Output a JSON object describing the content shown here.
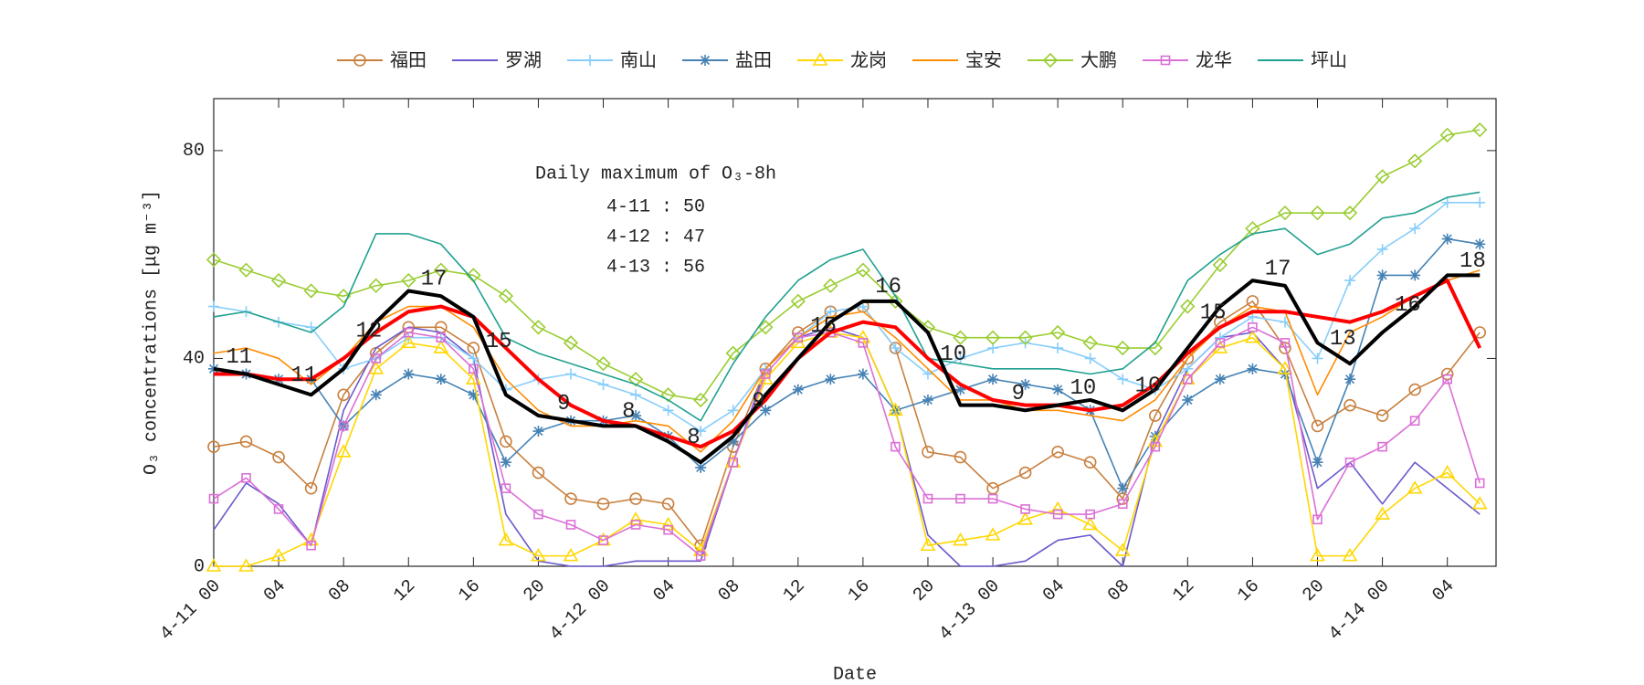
{
  "chart_data": {
    "type": "line",
    "xlabel": "Date",
    "ylabel": "O₃ concentrations [μg m⁻³]",
    "xlim": [
      0,
      79
    ],
    "ylim": [
      0,
      90
    ],
    "yticks": [
      0,
      40,
      80
    ],
    "xticks": [
      {
        "value": 0,
        "label": "4-11 00"
      },
      {
        "value": 4,
        "label": "04"
      },
      {
        "value": 8,
        "label": "08"
      },
      {
        "value": 12,
        "label": "12"
      },
      {
        "value": 16,
        "label": "16"
      },
      {
        "value": 20,
        "label": "20"
      },
      {
        "value": 24,
        "label": "4-12 00"
      },
      {
        "value": 28,
        "label": "04"
      },
      {
        "value": 32,
        "label": "08"
      },
      {
        "value": 36,
        "label": "12"
      },
      {
        "value": 40,
        "label": "16"
      },
      {
        "value": 44,
        "label": "20"
      },
      {
        "value": 48,
        "label": "4-13 00"
      },
      {
        "value": 52,
        "label": "04"
      },
      {
        "value": 56,
        "label": "08"
      },
      {
        "value": 60,
        "label": "12"
      },
      {
        "value": 64,
        "label": "16"
      },
      {
        "value": 68,
        "label": "20"
      },
      {
        "value": 72,
        "label": "4-14 00"
      },
      {
        "value": 76,
        "label": "04"
      }
    ],
    "info": {
      "title": "Daily maximum of O₃-8h",
      "lines": [
        "4-11 : 50",
        "4-12 : 47",
        "4-13 : 56"
      ]
    },
    "x": [
      0,
      2,
      4,
      6,
      8,
      10,
      12,
      14,
      16,
      18,
      20,
      22,
      24,
      26,
      28,
      30,
      32,
      34,
      36,
      38,
      40,
      42,
      44,
      46,
      48,
      50,
      52,
      54,
      56,
      58,
      60,
      62,
      64,
      66,
      68,
      70,
      72,
      74,
      76,
      78
    ],
    "series": [
      {
        "name": "福田",
        "color": "#c8803f",
        "marker": "circle",
        "values": [
          23,
          24,
          21,
          15,
          33,
          41,
          46,
          46,
          42,
          24,
          18,
          13,
          12,
          13,
          12,
          4,
          23,
          38,
          45,
          49,
          50,
          42,
          22,
          21,
          15,
          18,
          22,
          20,
          13,
          29,
          40,
          47,
          51,
          42,
          27,
          31,
          29,
          34,
          37,
          45
        ]
      },
      {
        "name": "罗湖",
        "color": "#6a5acd",
        "marker": "none",
        "values": [
          7,
          16,
          12,
          4,
          30,
          42,
          46,
          45,
          40,
          10,
          1,
          0,
          0,
          1,
          1,
          1,
          20,
          38,
          44,
          46,
          44,
          30,
          6,
          0,
          0,
          1,
          5,
          6,
          0,
          25,
          38,
          44,
          45,
          38,
          15,
          20,
          12,
          20,
          15,
          10
        ]
      },
      {
        "name": "南山",
        "color": "#87cefa",
        "marker": "plus",
        "values": [
          50,
          49,
          47,
          46,
          38,
          40,
          44,
          44,
          40,
          34,
          36,
          37,
          35,
          33,
          30,
          26,
          30,
          38,
          44,
          49,
          50,
          42,
          37,
          40,
          42,
          43,
          42,
          40,
          36,
          34,
          38,
          44,
          48,
          47,
          40,
          55,
          61,
          65,
          70,
          70
        ]
      },
      {
        "name": "盐田",
        "color": "#4682b4",
        "marker": "star",
        "values": [
          38,
          37,
          36,
          36,
          27,
          33,
          37,
          36,
          33,
          20,
          26,
          28,
          28,
          29,
          25,
          19,
          24,
          30,
          34,
          36,
          37,
          30,
          32,
          34,
          36,
          35,
          34,
          30,
          15,
          25,
          32,
          36,
          38,
          37,
          20,
          36,
          56,
          56,
          63,
          62
        ]
      },
      {
        "name": "龙岗",
        "color": "#ffd700",
        "marker": "triangle",
        "values": [
          0,
          0,
          2,
          5,
          22,
          38,
          43,
          42,
          36,
          5,
          2,
          2,
          5,
          9,
          8,
          3,
          20,
          36,
          43,
          45,
          44,
          30,
          4,
          5,
          6,
          9,
          11,
          8,
          3,
          24,
          36,
          42,
          44,
          38,
          2,
          2,
          10,
          15,
          18,
          12
        ]
      },
      {
        "name": "宝安",
        "color": "#ff8c00",
        "marker": "none",
        "values": [
          41,
          42,
          40,
          35,
          40,
          47,
          50,
          50,
          46,
          36,
          30,
          27,
          27,
          28,
          27,
          22,
          28,
          38,
          44,
          48,
          49,
          44,
          38,
          32,
          32,
          30,
          30,
          29,
          28,
          32,
          40,
          46,
          50,
          49,
          33,
          45,
          48,
          52,
          55,
          57
        ]
      },
      {
        "name": "大鹏",
        "color": "#9acd32",
        "marker": "diamond",
        "values": [
          59,
          57,
          55,
          53,
          52,
          54,
          55,
          57,
          56,
          52,
          46,
          43,
          39,
          36,
          33,
          32,
          41,
          46,
          51,
          54,
          57,
          51,
          46,
          44,
          44,
          44,
          45,
          43,
          42,
          42,
          50,
          58,
          65,
          68,
          68,
          68,
          75,
          78,
          83,
          84
        ]
      },
      {
        "name": "龙华",
        "color": "#da70d6",
        "marker": "square",
        "values": [
          13,
          17,
          11,
          4,
          27,
          40,
          45,
          44,
          38,
          15,
          10,
          8,
          5,
          8,
          7,
          2,
          20,
          37,
          44,
          45,
          43,
          23,
          13,
          13,
          13,
          11,
          10,
          10,
          12,
          23,
          36,
          43,
          46,
          43,
          9,
          20,
          23,
          28,
          36,
          16
        ]
      },
      {
        "name": "坪山",
        "color": "#20a090",
        "marker": "none",
        "values": [
          48,
          49,
          47,
          45,
          50,
          64,
          64,
          62,
          55,
          44,
          41,
          39,
          37,
          35,
          32,
          28,
          39,
          48,
          55,
          59,
          61,
          52,
          40,
          39,
          38,
          38,
          38,
          37,
          38,
          43,
          55,
          60,
          64,
          65,
          60,
          62,
          67,
          68,
          71,
          72
        ]
      },
      {
        "color": "#ff0000",
        "width": 4,
        "marker": "none",
        "values": [
          37,
          37,
          36,
          36,
          40,
          45,
          49,
          50,
          48,
          42,
          36,
          31,
          28,
          27,
          25,
          23,
          26,
          32,
          40,
          45,
          47,
          46,
          40,
          35,
          32,
          31,
          31,
          30,
          31,
          35,
          41,
          46,
          49,
          49,
          48,
          47,
          49,
          52,
          55,
          42
        ]
      },
      {
        "color": "#000000",
        "width": 4,
        "marker": "none",
        "values": [
          38,
          37,
          35,
          33,
          38,
          47,
          53,
          52,
          48,
          33,
          29,
          28,
          27,
          27,
          24,
          20,
          25,
          33,
          40,
          47,
          51,
          51,
          45,
          31,
          31,
          30,
          31,
          32,
          30,
          34,
          42,
          50,
          55,
          54,
          43,
          39,
          45,
          50,
          56,
          56
        ],
        "point_labels": {
          "x": [
            1,
            5,
            9,
            13,
            17,
            21,
            25,
            29,
            33,
            37,
            41,
            45,
            49,
            53,
            57,
            61,
            65,
            69,
            73,
            77
          ],
          "text": [
            "11",
            "11",
            "12",
            "17",
            "15",
            "9",
            "8",
            "8",
            "9",
            "15",
            "16",
            "10",
            "9",
            "10",
            "10",
            "15",
            "17",
            "13",
            "16",
            "18"
          ]
        }
      }
    ]
  }
}
